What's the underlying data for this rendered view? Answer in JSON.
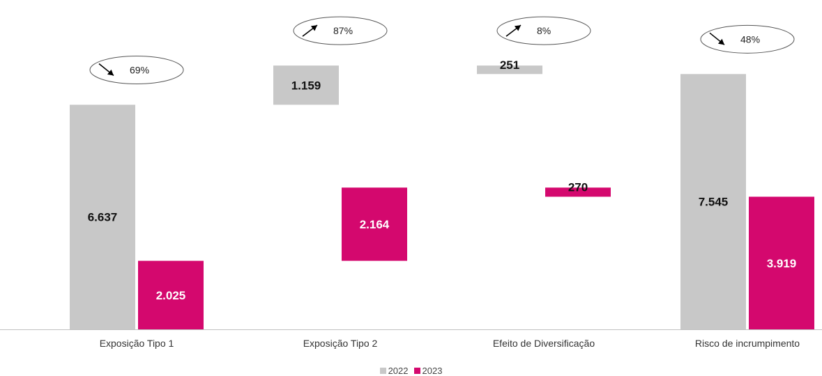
{
  "chart_data": {
    "type": "bar",
    "subtype": "waterfall-comparison",
    "categories": [
      "Exposição Tipo 1",
      "Exposição Tipo 2",
      "Efeito de Diversificação",
      "Risco de incrumpimento"
    ],
    "series": [
      {
        "name": "2022",
        "color": "#c8c8c8",
        "values": [
          6637,
          1159,
          -251,
          7545
        ],
        "labels": [
          "6.637",
          "1.159",
          "251",
          "7.545"
        ],
        "label_color": "#111111"
      },
      {
        "name": "2023",
        "color": "#d4086e",
        "values": [
          2025,
          2164,
          -270,
          3919
        ],
        "labels": [
          "2.025",
          "2.164",
          "270",
          "3.919"
        ],
        "label_color": "#ffffff"
      }
    ],
    "changes": [
      {
        "direction": "down",
        "label": "69%"
      },
      {
        "direction": "up",
        "label": "87%"
      },
      {
        "direction": "up",
        "label": "8%"
      },
      {
        "direction": "down",
        "label": "48%"
      }
    ],
    "ylim": [
      0,
      8000
    ],
    "grid": false,
    "legend": "bottom-center"
  }
}
